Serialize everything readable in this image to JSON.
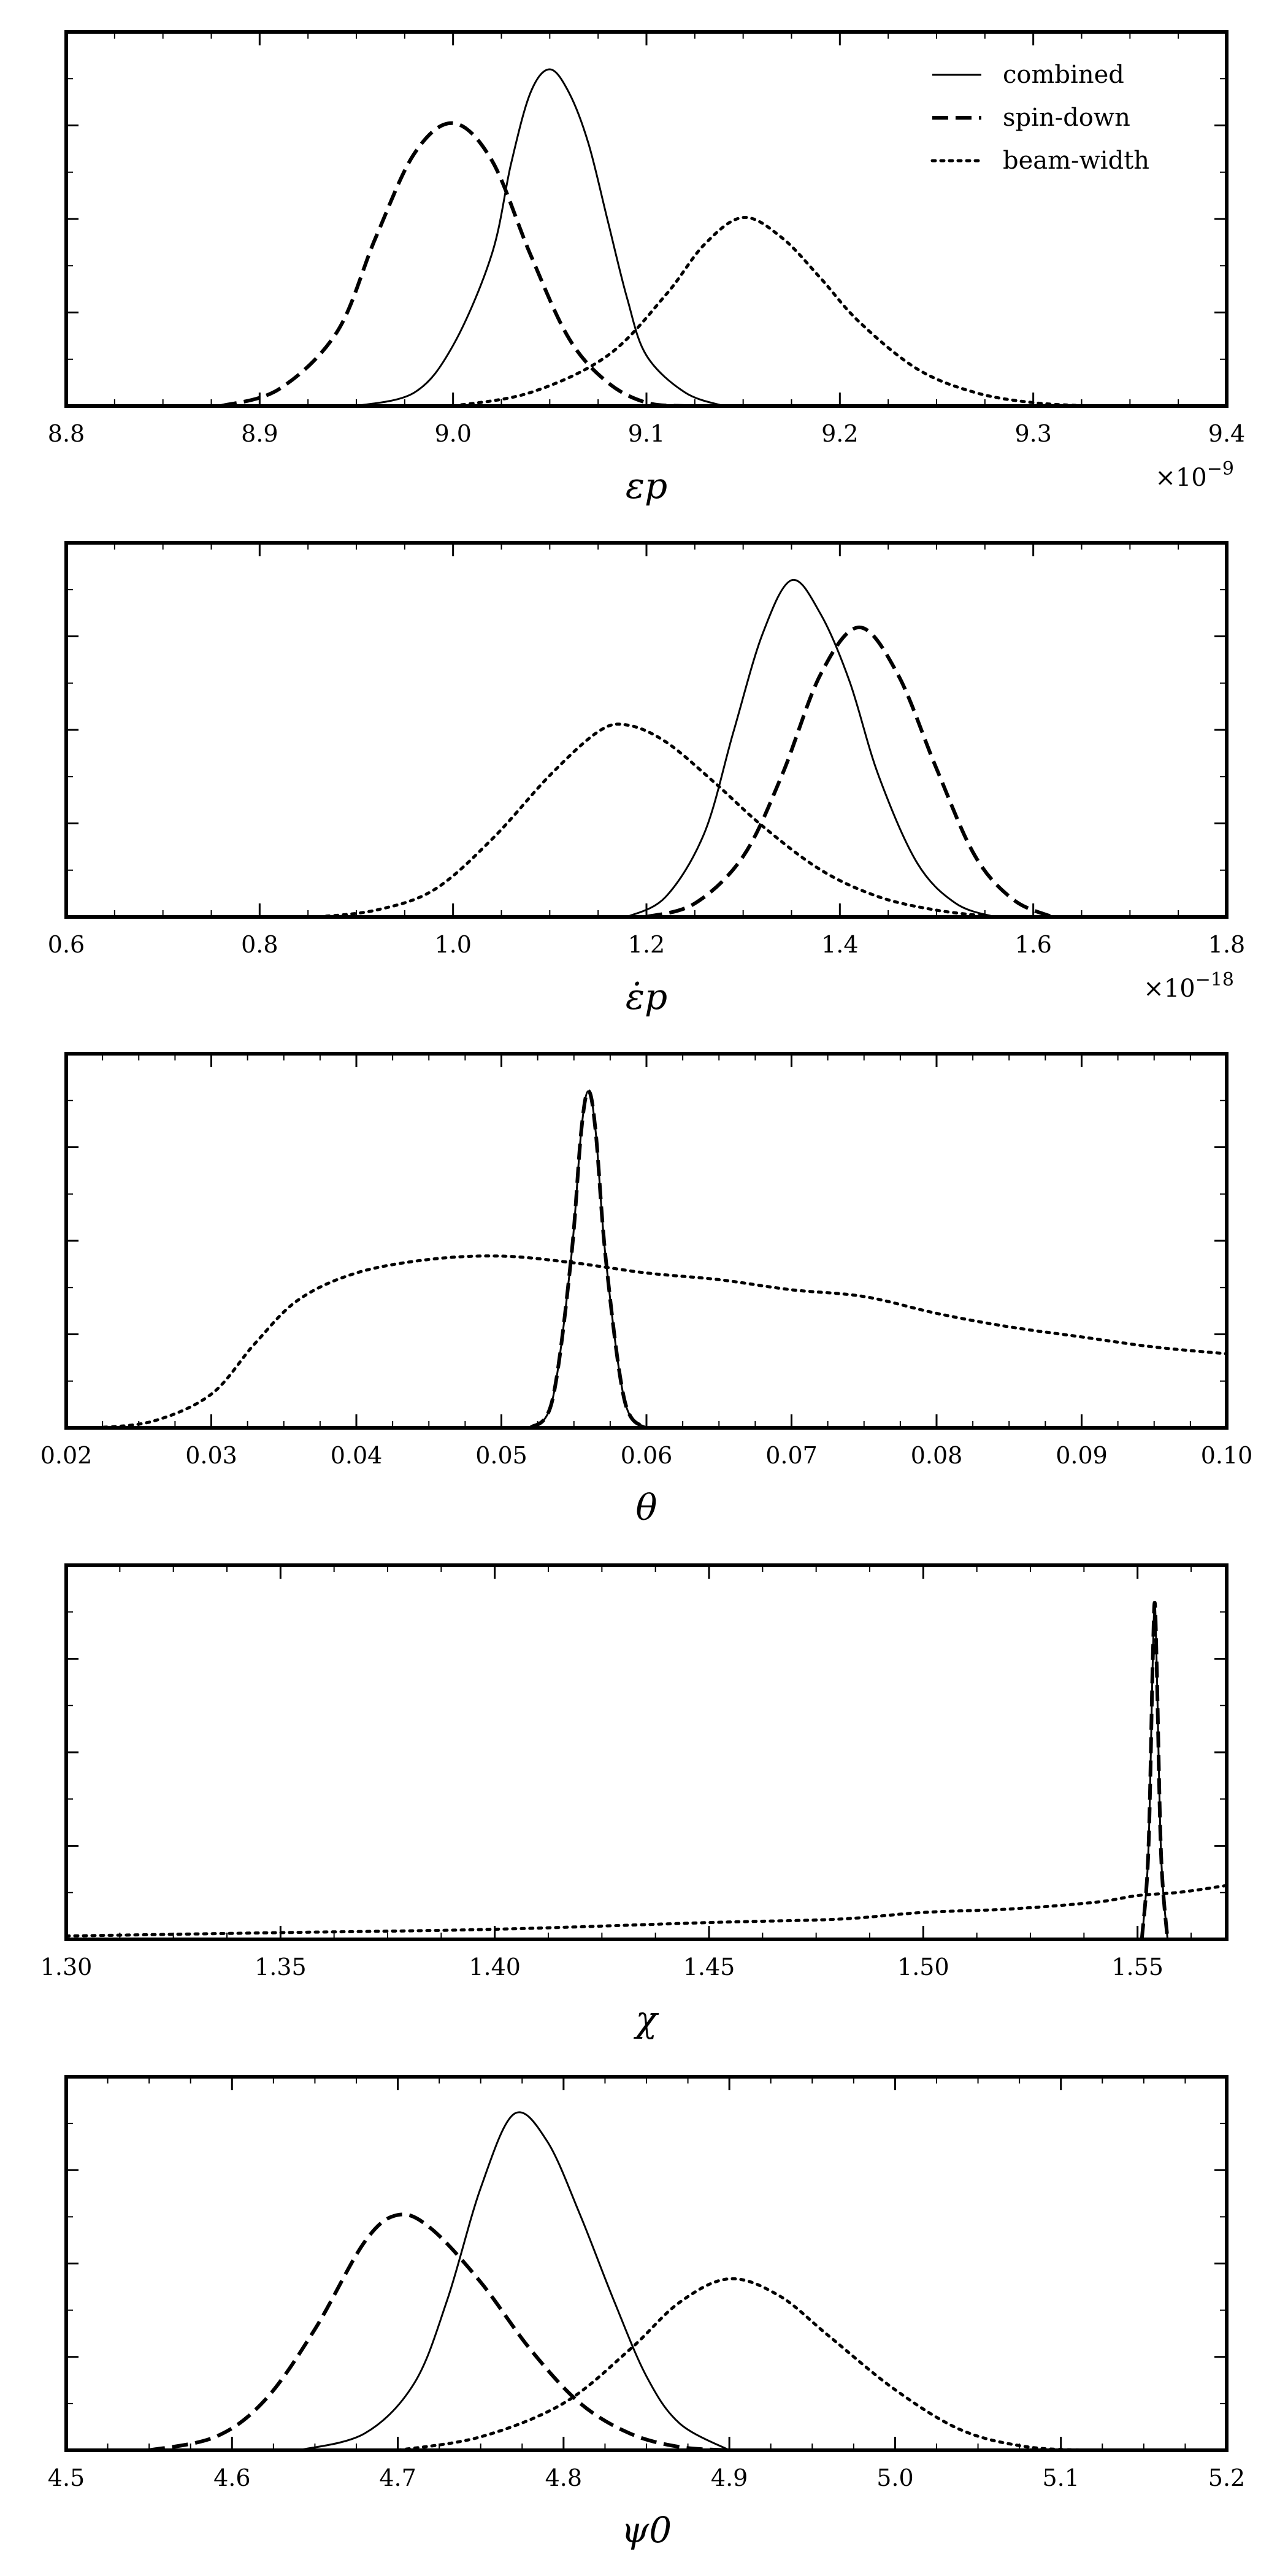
{
  "chart_data": [
    {
      "type": "line",
      "xlabel": "εp",
      "xlim": [
        8.8,
        9.4
      ],
      "xticks": [
        "8.8",
        "8.9",
        "9.0",
        "9.1",
        "9.2",
        "9.3",
        "9.4"
      ],
      "xticks_values": [
        8.8,
        8.9,
        9.0,
        9.1,
        9.2,
        9.3,
        9.4
      ],
      "multiplier": "×10",
      "multiplier_exponent": "−9",
      "legend": {
        "placement": "top-right",
        "entries": [
          "combined",
          "spin-down",
          "beam-width"
        ]
      },
      "series": [
        {
          "name": "combined",
          "style": "solid",
          "x": [
            8.95,
            8.98,
            9.0,
            9.02,
            9.03,
            9.04,
            9.05,
            9.06,
            9.07,
            9.08,
            9.09,
            9.1,
            9.12,
            9.14
          ],
          "y": [
            0.0,
            0.04,
            0.18,
            0.45,
            0.72,
            0.93,
            1.0,
            0.93,
            0.78,
            0.55,
            0.32,
            0.15,
            0.04,
            0.0
          ]
        },
        {
          "name": "spin-down",
          "style": "dashed",
          "x": [
            8.88,
            8.91,
            8.94,
            8.96,
            8.98,
            9.0,
            9.02,
            9.04,
            9.06,
            9.08,
            9.1,
            9.12
          ],
          "y": [
            0.0,
            0.05,
            0.22,
            0.5,
            0.75,
            0.84,
            0.73,
            0.45,
            0.2,
            0.07,
            0.01,
            0.0
          ]
        },
        {
          "name": "beam-width",
          "style": "dotted",
          "x": [
            9.0,
            9.04,
            9.08,
            9.11,
            9.13,
            9.15,
            9.17,
            9.19,
            9.21,
            9.24,
            9.27,
            9.3,
            9.33
          ],
          "y": [
            0.0,
            0.04,
            0.15,
            0.33,
            0.48,
            0.56,
            0.5,
            0.38,
            0.25,
            0.11,
            0.04,
            0.01,
            0.0
          ]
        }
      ]
    },
    {
      "type": "line",
      "xlabel": "ε̇p",
      "xlim": [
        0.6,
        1.8
      ],
      "xticks": [
        "0.6",
        "0.8",
        "1.0",
        "1.2",
        "1.4",
        "1.6",
        "1.8"
      ],
      "xticks_values": [
        0.6,
        0.8,
        1.0,
        1.2,
        1.4,
        1.6,
        1.8
      ],
      "multiplier": "×10",
      "multiplier_exponent": "−18",
      "series": [
        {
          "name": "combined",
          "style": "solid",
          "x": [
            1.18,
            1.22,
            1.26,
            1.29,
            1.32,
            1.35,
            1.38,
            1.41,
            1.44,
            1.48,
            1.52,
            1.56
          ],
          "y": [
            0.0,
            0.06,
            0.25,
            0.55,
            0.84,
            1.0,
            0.9,
            0.7,
            0.42,
            0.16,
            0.04,
            0.0
          ]
        },
        {
          "name": "spin-down",
          "style": "dashed",
          "x": [
            1.2,
            1.25,
            1.3,
            1.34,
            1.38,
            1.42,
            1.46,
            1.5,
            1.54,
            1.58,
            1.62
          ],
          "y": [
            0.0,
            0.04,
            0.18,
            0.42,
            0.72,
            0.86,
            0.72,
            0.44,
            0.18,
            0.05,
            0.0
          ]
        },
        {
          "name": "beam-width",
          "style": "dotted",
          "x": [
            0.86,
            0.92,
            0.98,
            1.04,
            1.1,
            1.15,
            1.18,
            1.22,
            1.27,
            1.32,
            1.38,
            1.44,
            1.5,
            1.56
          ],
          "y": [
            0.0,
            0.02,
            0.08,
            0.23,
            0.42,
            0.55,
            0.57,
            0.52,
            0.4,
            0.27,
            0.14,
            0.06,
            0.02,
            0.0
          ]
        }
      ]
    },
    {
      "type": "line",
      "xlabel": "θ",
      "xlim": [
        0.02,
        0.1
      ],
      "xticks": [
        "0.02",
        "0.03",
        "0.04",
        "0.05",
        "0.06",
        "0.07",
        "0.08",
        "0.09",
        "0.10"
      ],
      "xticks_values": [
        0.02,
        0.03,
        0.04,
        0.05,
        0.06,
        0.07,
        0.08,
        0.09,
        0.1
      ],
      "series": [
        {
          "name": "combined",
          "style": "solid",
          "x": [
            0.052,
            0.0535,
            0.0548,
            0.0555,
            0.056,
            0.0565,
            0.0572,
            0.0585,
            0.06
          ],
          "y": [
            0.0,
            0.08,
            0.5,
            0.88,
            1.0,
            0.88,
            0.5,
            0.08,
            0.0
          ]
        },
        {
          "name": "spin-down",
          "style": "dashed",
          "x": [
            0.052,
            0.0535,
            0.0548,
            0.0555,
            0.056,
            0.0565,
            0.0572,
            0.0585,
            0.06
          ],
          "y": [
            0.0,
            0.08,
            0.5,
            0.88,
            1.0,
            0.88,
            0.5,
            0.08,
            0.0
          ]
        },
        {
          "name": "beam-width",
          "style": "dotted",
          "x": [
            0.022,
            0.026,
            0.03,
            0.033,
            0.036,
            0.04,
            0.045,
            0.05,
            0.055,
            0.06,
            0.065,
            0.07,
            0.075,
            0.08,
            0.085,
            0.09,
            0.095,
            0.1
          ],
          "y": [
            0.0,
            0.02,
            0.1,
            0.25,
            0.38,
            0.46,
            0.5,
            0.51,
            0.49,
            0.46,
            0.44,
            0.41,
            0.39,
            0.34,
            0.3,
            0.27,
            0.24,
            0.22
          ]
        }
      ]
    },
    {
      "type": "line",
      "xlabel": "χ",
      "xlim": [
        1.3,
        1.5708
      ],
      "xticks": [
        "1.30",
        "1.35",
        "1.40",
        "1.45",
        "1.50",
        "1.55"
      ],
      "xticks_values": [
        1.3,
        1.35,
        1.4,
        1.45,
        1.5,
        1.55
      ],
      "series": [
        {
          "name": "combined",
          "style": "solid",
          "x": [
            1.551,
            1.5525,
            1.5535,
            1.554,
            1.5545,
            1.5555,
            1.557
          ],
          "y": [
            0.0,
            0.25,
            0.8,
            1.0,
            0.8,
            0.25,
            0.0
          ]
        },
        {
          "name": "spin-down",
          "style": "dashed",
          "x": [
            1.551,
            1.5525,
            1.5535,
            1.554,
            1.5545,
            1.5555,
            1.557
          ],
          "y": [
            0.0,
            0.25,
            0.8,
            1.0,
            0.8,
            0.25,
            0.0
          ]
        },
        {
          "name": "beam-width",
          "style": "dotted",
          "x": [
            1.3,
            1.35,
            1.4,
            1.45,
            1.48,
            1.5,
            1.52,
            1.54,
            1.55,
            1.56,
            1.5708
          ],
          "y": [
            0.01,
            0.02,
            0.03,
            0.05,
            0.06,
            0.08,
            0.09,
            0.11,
            0.13,
            0.14,
            0.16
          ]
        }
      ]
    },
    {
      "type": "line",
      "xlabel": "ψ0",
      "xlim": [
        4.5,
        5.2
      ],
      "xticks": [
        "4.5",
        "4.6",
        "4.7",
        "4.8",
        "4.9",
        "5.0",
        "5.1",
        "5.2"
      ],
      "xticks_values": [
        4.5,
        4.6,
        4.7,
        4.8,
        4.9,
        5.0,
        5.1,
        5.2
      ],
      "series": [
        {
          "name": "combined",
          "style": "solid",
          "x": [
            4.64,
            4.68,
            4.71,
            4.73,
            4.75,
            4.77,
            4.79,
            4.81,
            4.83,
            4.85,
            4.87,
            4.9
          ],
          "y": [
            0.0,
            0.05,
            0.2,
            0.45,
            0.78,
            1.0,
            0.92,
            0.7,
            0.45,
            0.22,
            0.08,
            0.0
          ]
        },
        {
          "name": "spin-down",
          "style": "dashed",
          "x": [
            4.55,
            4.59,
            4.62,
            4.65,
            4.68,
            4.7,
            4.72,
            4.75,
            4.78,
            4.81,
            4.84,
            4.87,
            4.9
          ],
          "y": [
            0.0,
            0.04,
            0.15,
            0.36,
            0.62,
            0.7,
            0.66,
            0.5,
            0.3,
            0.14,
            0.05,
            0.01,
            0.0
          ]
        },
        {
          "name": "beam-width",
          "style": "dotted",
          "x": [
            4.7,
            4.75,
            4.8,
            4.84,
            4.87,
            4.9,
            4.93,
            4.96,
            5.0,
            5.04,
            5.08,
            5.12
          ],
          "y": [
            0.0,
            0.04,
            0.14,
            0.3,
            0.44,
            0.51,
            0.46,
            0.34,
            0.18,
            0.06,
            0.01,
            0.0
          ]
        }
      ]
    }
  ]
}
